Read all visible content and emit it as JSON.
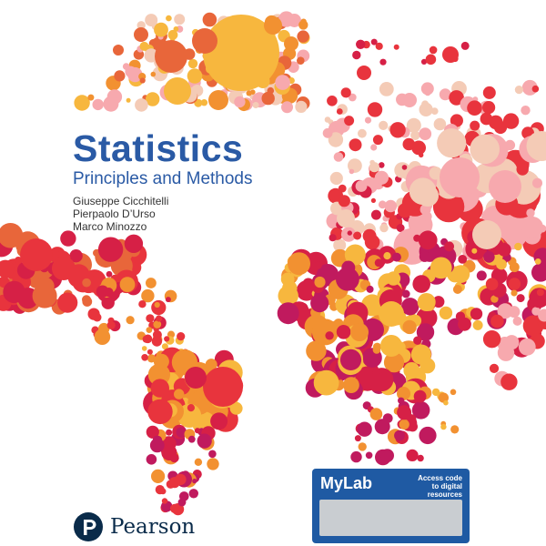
{
  "cover": {
    "title": "Statistics",
    "subtitle": "Principles and Methods",
    "authors": [
      "Giuseppe Cicchitelli",
      "Pierpaolo D’Urso",
      "Marco Minozzo"
    ],
    "publisher": "Pearson",
    "publisher_logo_icon": "pearson-p-icon"
  },
  "mylab": {
    "name": "MyLab",
    "tagline_line1": "Access code",
    "tagline_line2": "to digital resources"
  },
  "colors": {
    "title": "#2a5aa5",
    "mylab_blue": "#1f5aa3",
    "pearson_navy": "#0a2b4a",
    "scratch_panel": "#c9cdd1",
    "palette": [
      "#f7b73e",
      "#f29131",
      "#e8663a",
      "#e8343d",
      "#d62046",
      "#c01a5e",
      "#f7a9ae",
      "#f4cbb6"
    ]
  },
  "artwork_icon": "world-map-bubbles-icon"
}
